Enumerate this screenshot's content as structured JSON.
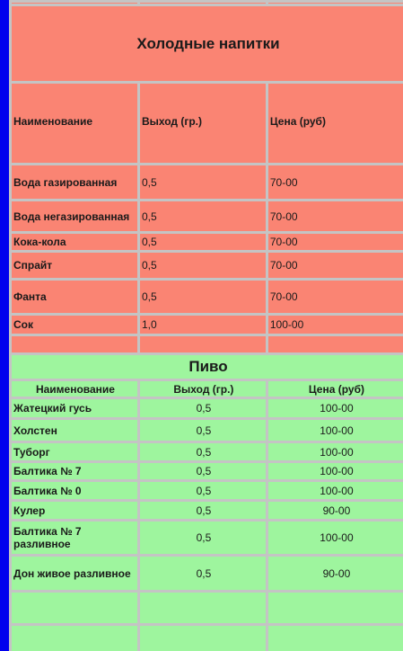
{
  "cold_drinks": {
    "title": "Холодные напитки",
    "headers": {
      "name": "Наименование",
      "output": "Выход (гр.)",
      "price": "Цена (руб)"
    },
    "rows": [
      {
        "name": "Вода газированная",
        "output": "0,5",
        "price": "70-00"
      },
      {
        "name": "Вода негазированная",
        "output": "0,5",
        "price": "70-00"
      },
      {
        "name": "Кока-кола",
        "output": "0,5",
        "price": "70-00"
      },
      {
        "name": "Спрайт",
        "output": "0,5",
        "price": "70-00"
      },
      {
        "name": "Фанта",
        "output": "0,5",
        "price": "70-00"
      },
      {
        "name": "Сок",
        "output": "1,0",
        "price": "100-00"
      }
    ]
  },
  "beer": {
    "title": "Пиво",
    "headers": {
      "name": "Наименование",
      "output": "Выход (гр.)",
      "price": "Цена (руб)"
    },
    "rows": [
      {
        "name": "Жатецкий гусь",
        "output": "0,5",
        "price": "100-00"
      },
      {
        "name": "Холстен",
        "output": "0,5",
        "price": "100-00"
      },
      {
        "name": "Туборг",
        "output": "0,5",
        "price": "100-00"
      },
      {
        "name": "Балтика № 7",
        "output": "0,5",
        "price": "100-00"
      },
      {
        "name": "Балтика № 0",
        "output": "0,5",
        "price": "100-00"
      },
      {
        "name": "Кулер",
        "output": "0,5",
        "price": "90-00"
      },
      {
        "name": "Балтика № 7 разливное",
        "output": "0,5",
        "price": "100-00"
      },
      {
        "name": "Дон живое разливное",
        "output": "0,5",
        "price": "90-00"
      }
    ]
  },
  "colors": {
    "salmon": "#fa8473",
    "green": "#9ef59e",
    "border": "#c4c4c4",
    "accent_bar": "#0000ee"
  }
}
